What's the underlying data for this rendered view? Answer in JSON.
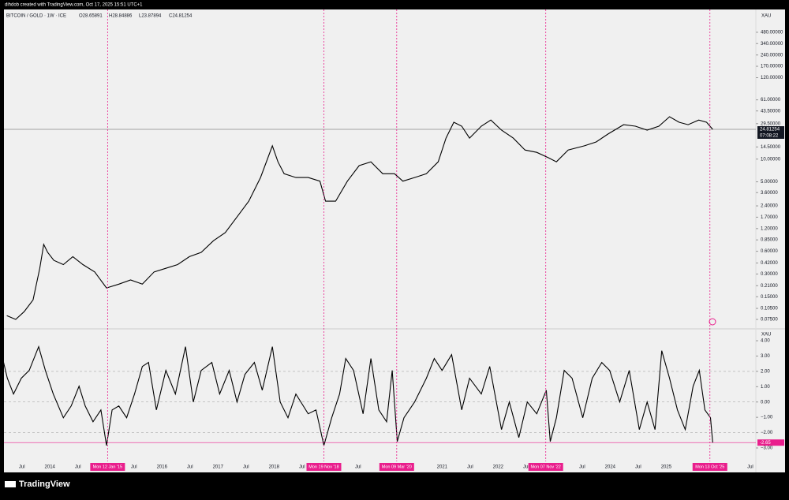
{
  "header": {
    "credit": "dihdob created with TradingView.com, Oct 17, 2025 15:51 UTC+1",
    "logo": "TradingView"
  },
  "chart_data": [
    {
      "type": "line",
      "title": "BITCOIN / GOLD · 1W · ICE",
      "ohlc": [
        "O28.65891",
        "H28.84886",
        "L23.87894",
        "C24.81254"
      ],
      "axis_label": "XAU",
      "log_scale": true,
      "color": "#000000",
      "x": [
        2013.23,
        2013.39,
        2013.54,
        2013.7,
        2013.82,
        2013.89,
        2013.96,
        2014.07,
        2014.24,
        2014.41,
        2014.59,
        2014.8,
        2015.01,
        2015.23,
        2015.44,
        2015.65,
        2015.86,
        2016.07,
        2016.28,
        2016.49,
        2016.7,
        2016.92,
        2017.13,
        2017.34,
        2017.55,
        2017.76,
        2017.97,
        2018.07,
        2018.18,
        2018.39,
        2018.61,
        2018.82,
        2018.92,
        2019.1,
        2019.31,
        2019.52,
        2019.73,
        2019.94,
        2020.15,
        2020.3,
        2020.51,
        2020.72,
        2020.93,
        2021.07,
        2021.21,
        2021.35,
        2021.49,
        2021.7,
        2021.87,
        2022.06,
        2022.27,
        2022.48,
        2022.69,
        2022.9,
        2023.04,
        2023.25,
        2023.54,
        2023.75,
        2023.96,
        2024.24,
        2024.45,
        2024.66,
        2024.87,
        2025.06,
        2025.23,
        2025.39,
        2025.58,
        2025.72,
        2025.83
      ],
      "values": [
        0.084,
        0.075,
        0.095,
        0.136,
        0.357,
        0.74,
        0.58,
        0.455,
        0.4,
        0.51,
        0.4,
        0.32,
        0.196,
        0.22,
        0.25,
        0.22,
        0.32,
        0.357,
        0.4,
        0.51,
        0.58,
        0.83,
        1.06,
        1.71,
        2.77,
        5.7,
        15.0,
        9.2,
        6.4,
        5.7,
        5.7,
        5.1,
        2.77,
        2.77,
        5.1,
        8.2,
        9.2,
        6.4,
        6.4,
        5.1,
        5.7,
        6.4,
        9.2,
        19,
        30.8,
        27.3,
        19,
        27.3,
        33,
        24.2,
        19,
        13.2,
        12.3,
        10.4,
        9.2,
        13.2,
        15.0,
        16.9,
        21.5,
        28.6,
        27.3,
        24.2,
        27.3,
        36.5,
        30.8,
        28.6,
        33,
        30.8,
        24.81254
      ],
      "xlim": [
        2013.18,
        2026.6
      ],
      "ylim": [
        0.059,
        963
      ],
      "yticks": [
        {
          "value": 480,
          "label": "480.00000"
        },
        {
          "value": 340,
          "label": "340.00000"
        },
        {
          "value": 240,
          "label": "240.00000"
        },
        {
          "value": 170,
          "label": "170.00000"
        },
        {
          "value": 120,
          "label": "120.00000"
        },
        {
          "value": 61,
          "label": "61.00000"
        },
        {
          "value": 43.5,
          "label": "43.50000"
        },
        {
          "value": 29.5,
          "label": "29.50000"
        },
        {
          "value": 14.5,
          "label": "14.50000"
        },
        {
          "value": 10,
          "label": "10.00000"
        },
        {
          "value": 5,
          "label": "5.00000"
        },
        {
          "value": 3.6,
          "label": "3.60000"
        },
        {
          "value": 2.4,
          "label": "2.40000"
        },
        {
          "value": 1.7,
          "label": "1.70000"
        },
        {
          "value": 1.2,
          "label": "1.20000"
        },
        {
          "value": 0.85,
          "label": "0.85000"
        },
        {
          "value": 0.6,
          "label": "0.60000"
        },
        {
          "value": 0.42,
          "label": "0.42000"
        },
        {
          "value": 0.3,
          "label": "0.30000"
        },
        {
          "value": 0.21,
          "label": "0.21000"
        },
        {
          "value": 0.15,
          "label": "0.15000"
        },
        {
          "value": 0.105,
          "label": "0.10500"
        },
        {
          "value": 0.075,
          "label": "0.07500"
        }
      ],
      "last_value": 24.81254,
      "countdown": "07:08:22"
    },
    {
      "type": "line",
      "axis_label": "XAU",
      "color": "#000000",
      "marker_color": "#e91e8c",
      "x": [
        2013.14,
        2013.24,
        2013.35,
        2013.49,
        2013.63,
        2013.8,
        2013.92,
        2014.06,
        2014.24,
        2014.38,
        2014.52,
        2014.63,
        2014.77,
        2014.91,
        2015.01,
        2015.11,
        2015.23,
        2015.37,
        2015.51,
        2015.65,
        2015.76,
        2015.9,
        2016.07,
        2016.24,
        2016.42,
        2016.56,
        2016.7,
        2016.89,
        2017.03,
        2017.2,
        2017.34,
        2017.48,
        2017.65,
        2017.79,
        2017.97,
        2018.11,
        2018.25,
        2018.39,
        2018.61,
        2018.75,
        2018.89,
        2019.03,
        2019.17,
        2019.28,
        2019.42,
        2019.59,
        2019.73,
        2019.87,
        2020.01,
        2020.11,
        2020.2,
        2020.32,
        2020.51,
        2020.72,
        2020.86,
        2021.0,
        2021.17,
        2021.35,
        2021.49,
        2021.7,
        2021.85,
        2022.06,
        2022.2,
        2022.37,
        2022.52,
        2022.69,
        2022.86,
        2022.93,
        2023.04,
        2023.18,
        2023.32,
        2023.51,
        2023.68,
        2023.85,
        2023.99,
        2024.17,
        2024.34,
        2024.52,
        2024.66,
        2024.8,
        2024.92,
        2025.06,
        2025.2,
        2025.34,
        2025.48,
        2025.59,
        2025.69,
        2025.79,
        2025.83
      ],
      "values": [
        3.09,
        1.55,
        0.52,
        1.55,
        2.06,
        3.61,
        2.06,
        0.52,
        -1.03,
        -0.26,
        1.03,
        -0.26,
        -1.29,
        -0.52,
        -2.84,
        -0.52,
        -0.26,
        -1.03,
        0.52,
        2.32,
        2.58,
        -0.52,
        2.06,
        0.52,
        3.61,
        0,
        2.06,
        2.58,
        0.52,
        2.06,
        0,
        1.8,
        2.58,
        0.77,
        3.61,
        0,
        -1.03,
        0.52,
        -0.77,
        -0.52,
        -2.84,
        -1.03,
        0.52,
        2.84,
        2.06,
        -0.77,
        2.84,
        -0.52,
        -1.29,
        2.06,
        -2.58,
        -1.03,
        0,
        1.55,
        2.84,
        2.06,
        3.09,
        -0.52,
        1.55,
        0.52,
        2.32,
        -1.8,
        0,
        -2.32,
        0,
        -0.77,
        0.77,
        -2.58,
        -1.03,
        2.06,
        1.55,
        -1.03,
        1.55,
        2.58,
        2.06,
        0,
        2.06,
        -1.8,
        0,
        -1.8,
        3.35,
        1.55,
        -0.52,
        -1.8,
        1.03,
        2.06,
        -0.52,
        -1.03,
        -2.65
      ],
      "xlim": [
        2013.18,
        2026.6
      ],
      "ylim": [
        -3.36,
        4.62
      ],
      "yticks": [
        {
          "value": 4,
          "label": "4.00"
        },
        {
          "value": 3,
          "label": "3.00"
        },
        {
          "value": 2,
          "label": "2.00"
        },
        {
          "value": 1,
          "label": "1.00"
        },
        {
          "value": 0,
          "label": "0.00"
        },
        {
          "value": -1,
          "label": "−1.00"
        },
        {
          "value": -2,
          "label": "−2.00"
        },
        {
          "value": -3,
          "label": "−3.00"
        }
      ],
      "dashed_levels": [
        2,
        0,
        -2
      ],
      "last_value": -2.65,
      "xticks": [
        {
          "value": 2013.5,
          "label": "Jul"
        },
        2014,
        {
          "value": 2014.5,
          "label": "Jul"
        },
        {
          "value": 2015.5,
          "label": "Jul"
        },
        2016,
        {
          "value": 2016.5,
          "label": "Jul"
        },
        2017,
        {
          "value": 2017.5,
          "label": "Jul"
        },
        2018,
        {
          "value": 2018.5,
          "label": "Jul"
        },
        {
          "value": 2019.5,
          "label": "Jul"
        },
        2021,
        {
          "value": 2021.5,
          "label": "Jul"
        },
        2022,
        {
          "value": 2022.5,
          "label": "Jul"
        },
        {
          "value": 2023.5,
          "label": "Jul"
        },
        2024,
        {
          "value": 2024.5,
          "label": "Jul"
        },
        2025,
        {
          "value": 2026.5,
          "label": "Jul"
        }
      ],
      "x_markers": [
        {
          "value": 2015.03,
          "label": "Mon 12 Jan '15"
        },
        {
          "value": 2018.89,
          "label": "Mon 19 Nov '18"
        },
        {
          "value": 2020.19,
          "label": "Mon 09 Mar '20"
        },
        {
          "value": 2022.85,
          "label": "Mon 07 Nov '22"
        },
        {
          "value": 2025.78,
          "label": "Mon 13 Oct '25"
        }
      ]
    }
  ]
}
